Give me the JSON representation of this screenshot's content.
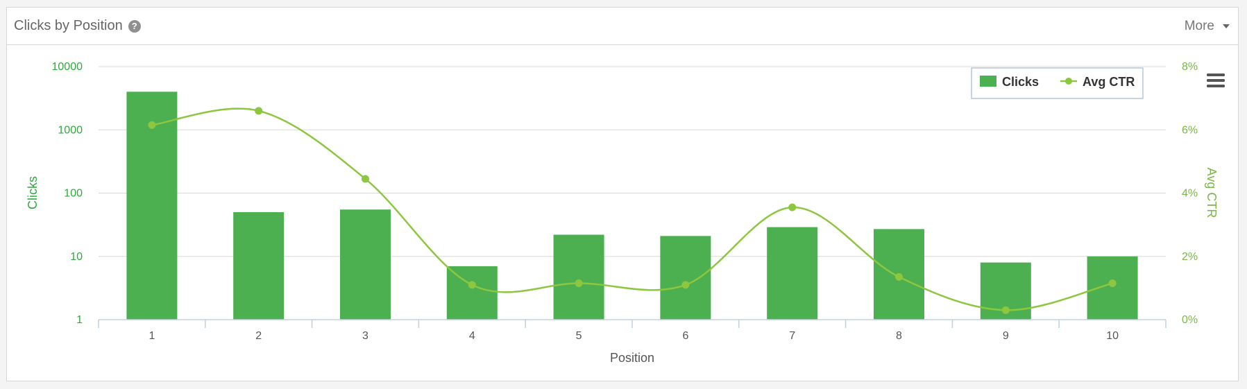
{
  "panel": {
    "title": "Clicks by Position",
    "more_label": "More"
  },
  "colors": {
    "bar": "#4caf50",
    "line": "#8dc63f",
    "left_axis_text": "#2eaa3a",
    "right_axis_text": "#7ab648",
    "grid": "#d8d8d8",
    "x_axis": "#c0d0e0",
    "x_text": "#555555"
  },
  "icons": {
    "help": "question-circle-icon",
    "more": "caret-down-icon",
    "menu": "hamburger-menu-icon"
  },
  "chart_data": {
    "type": "bar",
    "title": "Clicks by Position",
    "xlabel": "Position",
    "ylabel": "Clicks",
    "y2label": "Avg CTR",
    "categories": [
      "1",
      "2",
      "3",
      "4",
      "5",
      "6",
      "7",
      "8",
      "9",
      "10"
    ],
    "y_scale": "log",
    "ylim": [
      1,
      10000
    ],
    "y_ticks": [
      "10000",
      "1000",
      "100",
      "10",
      "1"
    ],
    "y2lim": [
      0,
      8
    ],
    "y2_ticks": [
      "8%",
      "6%",
      "4%",
      "2%",
      "0%"
    ],
    "grid": true,
    "legend_position": "top-right",
    "series": [
      {
        "name": "Clicks",
        "kind": "bar",
        "axis": "left",
        "values": [
          4000,
          50,
          55,
          7,
          22,
          21,
          29,
          27,
          8,
          10
        ]
      },
      {
        "name": "Avg CTR",
        "kind": "spline",
        "axis": "right",
        "unit": "%",
        "values": [
          6.15,
          6.6,
          4.45,
          1.1,
          1.15,
          1.1,
          3.55,
          1.35,
          0.3,
          1.15
        ]
      }
    ]
  }
}
